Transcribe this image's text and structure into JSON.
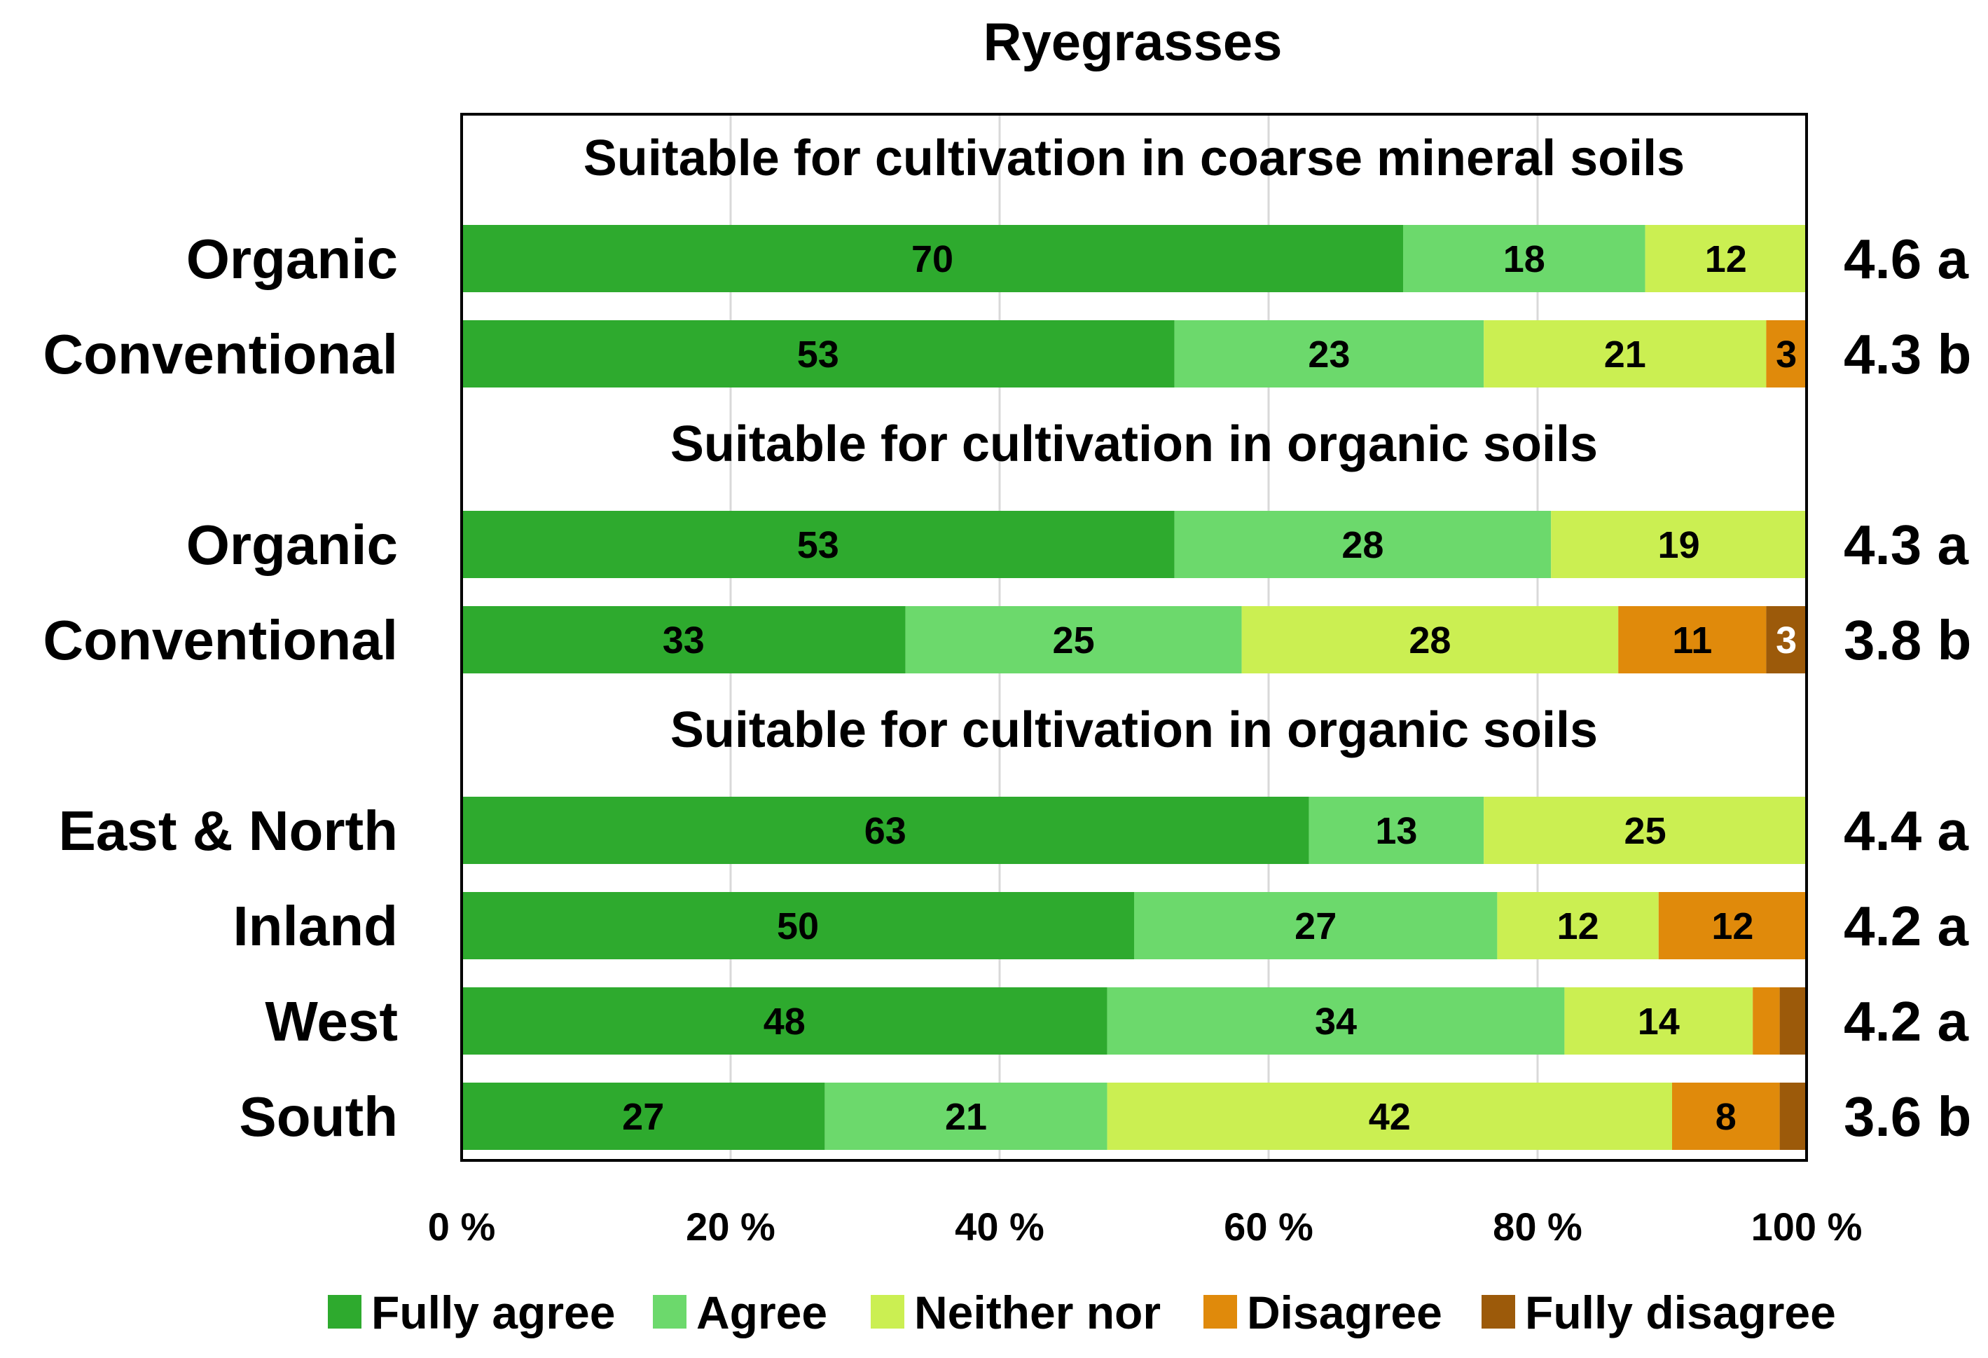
{
  "chart_data": {
    "type": "bar",
    "orientation": "horizontal",
    "stacked": true,
    "title": "Ryegrasses",
    "xlabel": "",
    "ylabel": "",
    "xlim": [
      0,
      100
    ],
    "x_ticks": [
      "0 %",
      "20 %",
      "40 %",
      "60 %",
      "80 %",
      "100 %"
    ],
    "grid": true,
    "legend_position": "bottom",
    "categories_legend": [
      "Fully agree",
      "Agree",
      "Neither nor",
      "Disagree",
      "Fully disagree"
    ],
    "colors": [
      "#2eaa2e",
      "#6cd96c",
      "#cbef52",
      "#e08a0b",
      "#9c5a0a"
    ],
    "groups": [
      {
        "subtitle": "Suitable for cultivation in coarse mineral soils",
        "rows": [
          {
            "label": "Organic",
            "values": [
              70,
              18,
              12,
              0,
              0
            ],
            "labels": [
              "70",
              "18",
              "12",
              "",
              ""
            ],
            "score": "4.6 a"
          },
          {
            "label": "Conventional",
            "values": [
              53,
              23,
              21,
              3,
              0
            ],
            "labels": [
              "53",
              "23",
              "21",
              "3",
              ""
            ],
            "score": "4.3 b"
          }
        ]
      },
      {
        "subtitle": "Suitable for cultivation in organic soils",
        "rows": [
          {
            "label": "Organic",
            "values": [
              53,
              28,
              19,
              0,
              0
            ],
            "labels": [
              "53",
              "28",
              "19",
              "",
              ""
            ],
            "score": "4.3 a"
          },
          {
            "label": "Conventional",
            "values": [
              33,
              25,
              28,
              11,
              3
            ],
            "labels": [
              "33",
              "25",
              "28",
              "11",
              "3"
            ],
            "score": "3.8 b"
          }
        ]
      },
      {
        "subtitle": "Suitable for cultivation in organic soils",
        "rows": [
          {
            "label": "East & North",
            "values": [
              63,
              13,
              25,
              0,
              0
            ],
            "labels": [
              "63",
              "13",
              "25",
              "",
              ""
            ],
            "score": "4.4 a"
          },
          {
            "label": "Inland",
            "values": [
              50,
              27,
              12,
              12,
              0
            ],
            "labels": [
              "50",
              "27",
              "12",
              "12",
              ""
            ],
            "score": "4.2 a"
          },
          {
            "label": "West",
            "values": [
              48,
              34,
              14,
              2,
              2
            ],
            "labels": [
              "48",
              "34",
              "14",
              "",
              ""
            ],
            "score": "4.2 a"
          },
          {
            "label": "South",
            "values": [
              27,
              21,
              42,
              8,
              2
            ],
            "labels": [
              "27",
              "21",
              "42",
              "8",
              ""
            ],
            "score": "3.6 b"
          }
        ]
      }
    ]
  }
}
